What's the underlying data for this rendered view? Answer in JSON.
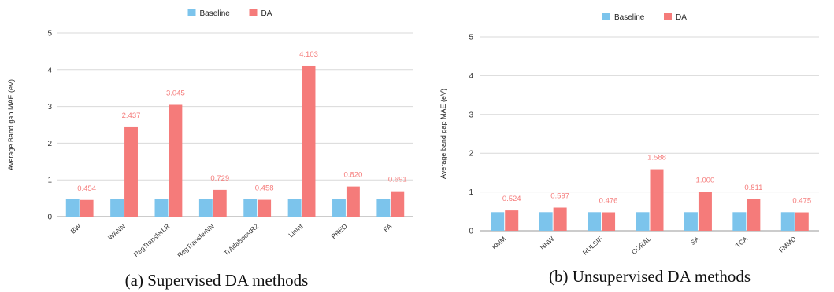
{
  "chart_data": [
    {
      "type": "bar",
      "caption": "(a) Supervised DA methods",
      "ylabel": "Average Band gap MAE (eV)",
      "ylim": [
        0,
        5
      ],
      "yticks": [
        "0",
        "1",
        "2",
        "3",
        "4",
        "5"
      ],
      "grid": true,
      "legend_position": "top-center",
      "categories": [
        "BW",
        "WANN",
        "RegTransferLR",
        "RegTransferNN",
        "TrAdaBoostR2",
        "LinInt",
        "PRED",
        "FA"
      ],
      "series": [
        {
          "name": "Baseline",
          "color": "#7cc4ec",
          "values": [
            0.49,
            0.49,
            0.49,
            0.49,
            0.49,
            0.49,
            0.49,
            0.49
          ]
        },
        {
          "name": "DA",
          "color": "#f57b7a",
          "values": [
            0.454,
            2.437,
            3.045,
            0.729,
            0.458,
            4.103,
            0.82,
            0.691
          ],
          "labels": [
            "0.454",
            "2.437",
            "3.045",
            "0.729",
            "0.458",
            "4.103",
            "0.820",
            "0.691"
          ]
        }
      ]
    },
    {
      "type": "bar",
      "caption": "(b) Unsupervised DA methods",
      "ylabel": "Average band gap MAE (eV)",
      "ylim": [
        0,
        5
      ],
      "yticks": [
        "0",
        "1",
        "2",
        "3",
        "4",
        "5"
      ],
      "grid": true,
      "legend_position": "top-center",
      "categories": [
        "KMM",
        "NNW",
        "RULSIF",
        "CORAL",
        "SA",
        "TCA",
        "FMMD"
      ],
      "series": [
        {
          "name": "Baseline",
          "color": "#7cc4ec",
          "values": [
            0.48,
            0.48,
            0.48,
            0.48,
            0.48,
            0.48,
            0.48
          ]
        },
        {
          "name": "DA",
          "color": "#f57b7a",
          "values": [
            0.524,
            0.597,
            0.476,
            1.588,
            1.0,
            0.811,
            0.475
          ],
          "labels": [
            "0.524",
            "0.597",
            "0.476",
            "1.588",
            "1.000",
            "0.811",
            "0.475"
          ]
        }
      ]
    }
  ]
}
